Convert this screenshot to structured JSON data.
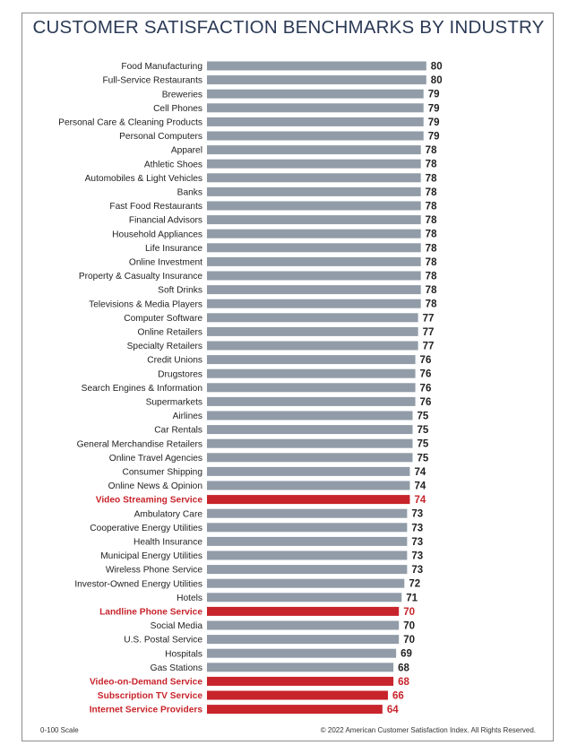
{
  "colors": {
    "bar_default": "#919ca8",
    "bar_highlight": "#c8242b",
    "label_default": "#222222",
    "value_default": "#222222",
    "label_highlight": "#c8242b",
    "title": "#2b3a55"
  },
  "footer": {
    "scale_note": "0-100 Scale",
    "copyright": "© 2022 American Customer Satisfaction Index. All Rights Reserved."
  },
  "chart_data": {
    "type": "bar",
    "orientation": "horizontal",
    "title": "CUSTOMER SATISFACTION BENCHMARKS BY INDUSTRY",
    "xlabel": "",
    "ylabel": "",
    "xlim": [
      0,
      100
    ],
    "grid": false,
    "legend": "none",
    "categories": [
      "Food Manufacturing",
      "Full-Service Restaurants",
      "Breweries",
      "Cell Phones",
      "Personal Care & Cleaning Products",
      "Personal Computers",
      "Apparel",
      "Athletic Shoes",
      "Automobiles & Light Vehicles",
      "Banks",
      "Fast Food Restaurants",
      "Financial Advisors",
      "Household Appliances",
      "Life Insurance",
      "Online Investment",
      "Property & Casualty Insurance",
      "Soft Drinks",
      "Televisions & Media Players",
      "Computer Software",
      "Online Retailers",
      "Specialty Retailers",
      "Credit Unions",
      "Drugstores",
      "Search Engines & Information",
      "Supermarkets",
      "Airlines",
      "Car Rentals",
      "General Merchandise Retailers",
      "Online Travel Agencies",
      "Consumer Shipping",
      "Online News & Opinion",
      "Video Streaming Service",
      "Ambulatory Care",
      "Cooperative Energy Utilities",
      "Health Insurance",
      "Municipal Energy Utilities",
      "Wireless Phone Service",
      "Investor-Owned Energy Utilities",
      "Hotels",
      "Landline Phone Service",
      "Social Media",
      "U.S. Postal Service",
      "Hospitals",
      "Gas Stations",
      "Video-on-Demand Service",
      "Subscription TV Service",
      "Internet Service Providers"
    ],
    "values": [
      80,
      80,
      79,
      79,
      79,
      79,
      78,
      78,
      78,
      78,
      78,
      78,
      78,
      78,
      78,
      78,
      78,
      78,
      77,
      77,
      77,
      76,
      76,
      76,
      76,
      75,
      75,
      75,
      75,
      74,
      74,
      74,
      73,
      73,
      73,
      73,
      73,
      72,
      71,
      70,
      70,
      70,
      69,
      68,
      68,
      66,
      64
    ],
    "highlighted": [
      "Video Streaming Service",
      "Landline Phone Service",
      "Video-on-Demand Service",
      "Subscription TV Service",
      "Internet Service Providers"
    ]
  }
}
